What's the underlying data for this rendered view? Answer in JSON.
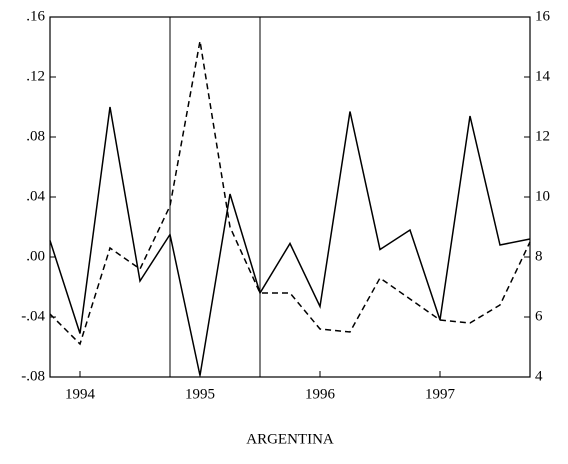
{
  "chart_data": {
    "type": "line",
    "title": "ARGENTINA",
    "x": [
      1993.75,
      1994.0,
      1994.25,
      1994.5,
      1994.75,
      1995.0,
      1995.25,
      1995.5,
      1995.75,
      1996.0,
      1996.25,
      1996.5,
      1996.75,
      1997.0,
      1997.25,
      1997.5,
      1997.75
    ],
    "xlim": [
      1993.75,
      1997.75
    ],
    "xticks": [
      1994,
      1995,
      1996,
      1997
    ],
    "ylim": [
      -0.08,
      0.16
    ],
    "yticks": [
      {
        "value": -0.08,
        "label": "-.08"
      },
      {
        "value": -0.04,
        "label": "-.04"
      },
      {
        "value": 0,
        "label": ".00"
      },
      {
        "value": 0.04,
        "label": ".04"
      },
      {
        "value": 0.08,
        "label": ".08"
      },
      {
        "value": 0.12,
        "label": ".12"
      },
      {
        "value": 0.16,
        "label": ".16"
      }
    ],
    "y2lim": [
      4,
      16
    ],
    "y2ticks": [
      4,
      6,
      8,
      10,
      12,
      14,
      16
    ],
    "vlines": [
      1994.75,
      1995.5
    ],
    "series": [
      {
        "color": "#000000",
        "dash": "solid",
        "values": [
          0.011,
          -0.051,
          0.1,
          -0.016,
          0.015,
          -0.079,
          0.042,
          -0.024,
          0.009,
          -0.033,
          0.097,
          0.005,
          0.018,
          -0.042,
          0.094,
          0.008,
          0.012
        ]
      },
      {
        "color": "#000000",
        "dash": "dashed",
        "axis": "y2",
        "values": [
          6.1,
          5.1,
          8.3,
          7.6,
          9.7,
          15.2,
          9.0,
          6.8,
          6.8,
          5.6,
          5.5,
          7.3,
          6.6,
          5.9,
          5.8,
          6.4,
          8.5
        ]
      }
    ]
  }
}
